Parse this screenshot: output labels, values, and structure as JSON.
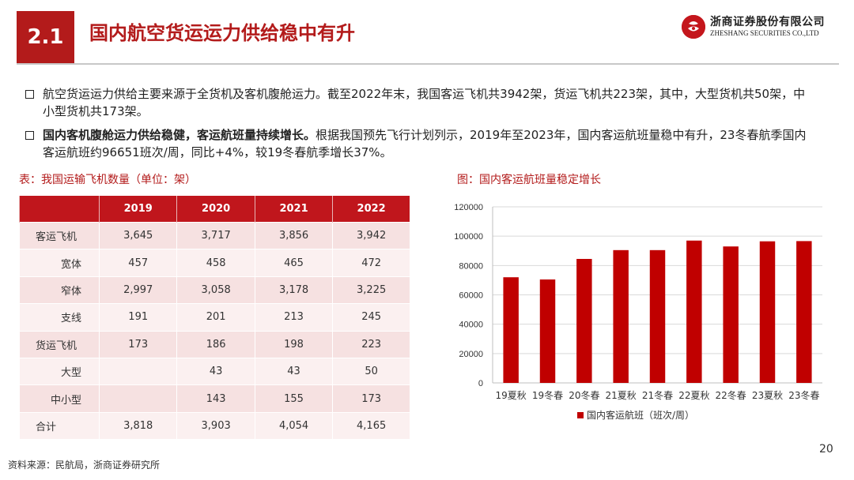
{
  "header": {
    "section": "2.1",
    "title": "国内航空货运运力供给稳中有升",
    "logo_name": "浙商证券股份有限公司",
    "logo_sub": "ZHESHANG SECURITIES CO.,LTD"
  },
  "bullets": [
    {
      "bold": "",
      "text": "航空货运运力供给主要来源于全货机及客机腹舱运力。截至2022年末，我国客运飞机共3942架，货运飞机共223架，其中，大型货机共50架，中小型货机共173架。"
    },
    {
      "bold": "国内客机腹舱运力供给稳健，客运航班量持续增长。",
      "text": "根据我国预先飞行计划列示，2019年至2023年，国内客运航班量稳中有升，23冬春航季国内客运航班约96651班次/周，同比+4%，较19冬春航季增长37%。"
    }
  ],
  "table": {
    "caption": "表：我国运输飞机数量（单位：架）",
    "headers": [
      "",
      "2019",
      "2020",
      "2021",
      "2022"
    ],
    "rows": [
      {
        "label": "客运飞机",
        "sub": false,
        "values": [
          "3,645",
          "3,717",
          "3,856",
          "3,942"
        ]
      },
      {
        "label": "宽体",
        "sub": true,
        "values": [
          "457",
          "458",
          "465",
          "472"
        ]
      },
      {
        "label": "窄体",
        "sub": true,
        "values": [
          "2,997",
          "3,058",
          "3,178",
          "3,225"
        ]
      },
      {
        "label": "支线",
        "sub": true,
        "values": [
          "191",
          "201",
          "213",
          "245"
        ]
      },
      {
        "label": "货运飞机",
        "sub": false,
        "values": [
          "173",
          "186",
          "198",
          "223"
        ]
      },
      {
        "label": "大型",
        "sub": true,
        "values": [
          "",
          "43",
          "43",
          "50"
        ]
      },
      {
        "label": "中小型",
        "sub": true,
        "values": [
          "",
          "143",
          "155",
          "173"
        ]
      },
      {
        "label": "合计",
        "sub": false,
        "values": [
          "3,818",
          "3,903",
          "4,054",
          "4,165"
        ]
      }
    ]
  },
  "chart_caption": "图：国内客运航班量稳定增长",
  "chart_data": {
    "type": "bar",
    "categories": [
      "19夏秋",
      "19冬春",
      "20冬春",
      "21夏秋",
      "21冬春",
      "22夏秋",
      "22冬春",
      "23夏秋",
      "23冬春"
    ],
    "series": [
      {
        "name": "国内客运航班（班次/周）",
        "values": [
          72000,
          70500,
          84500,
          90500,
          90500,
          97000,
          93000,
          96500,
          96651
        ],
        "color": "#c00000"
      }
    ],
    "ylim": [
      0,
      120000
    ],
    "yticks": [
      "0",
      "20000",
      "40000",
      "60000",
      "80000",
      "100000",
      "120000"
    ],
    "grid": true,
    "legend": "bottom"
  },
  "footer": {
    "source": "资料来源：民航局，浙商证券研究所",
    "page": "20"
  },
  "colors": {
    "accent": "#b31b1b",
    "table_header": "#c0161c",
    "bar": "#c00000"
  }
}
